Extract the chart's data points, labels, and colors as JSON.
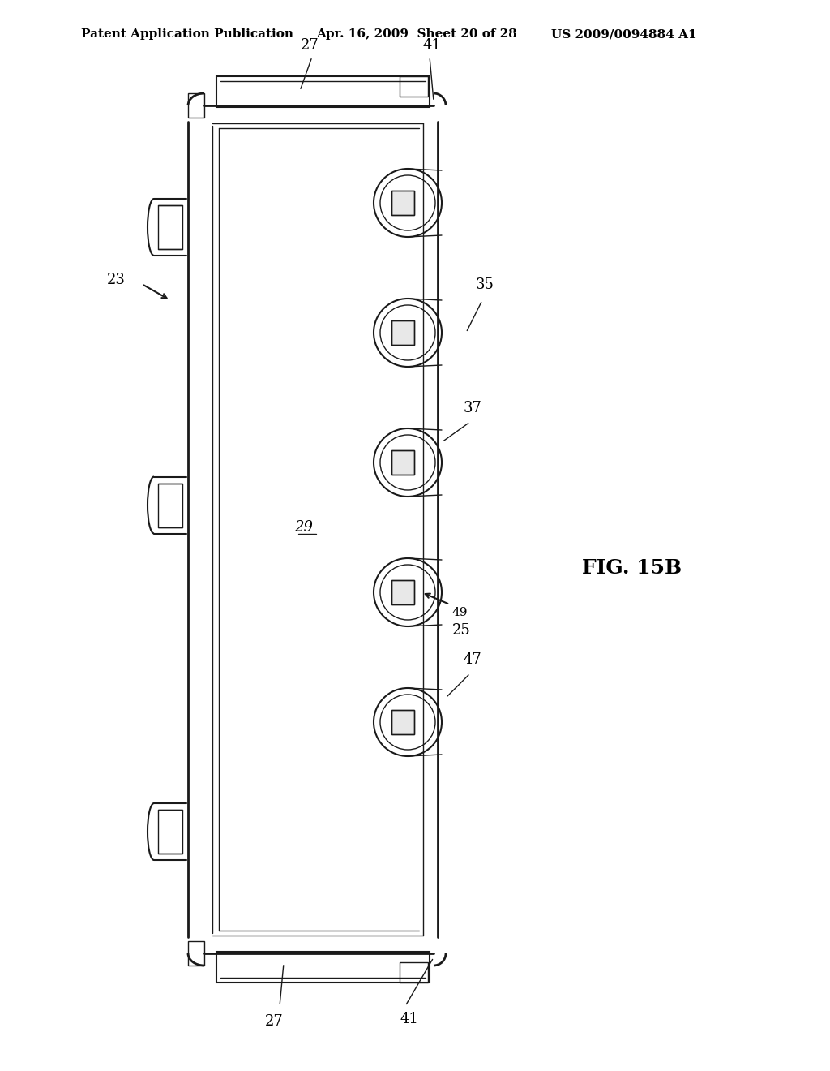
{
  "bg_color": "#ffffff",
  "line_color": "#1a1a1a",
  "header_text1": "Patent Application Publication",
  "header_text2": "Apr. 16, 2009  Sheet 20 of 28",
  "header_text3": "US 2009/0094884 A1",
  "fig_label": "FIG. 15B",
  "ref_23": "23",
  "ref_27_top": "27",
  "ref_27_bot": "27",
  "ref_41_top": "41",
  "ref_41_bot": "41",
  "ref_29": "29",
  "ref_35": "35",
  "ref_37": "37",
  "ref_47": "47",
  "ref_49": "49",
  "ref_25": "25"
}
